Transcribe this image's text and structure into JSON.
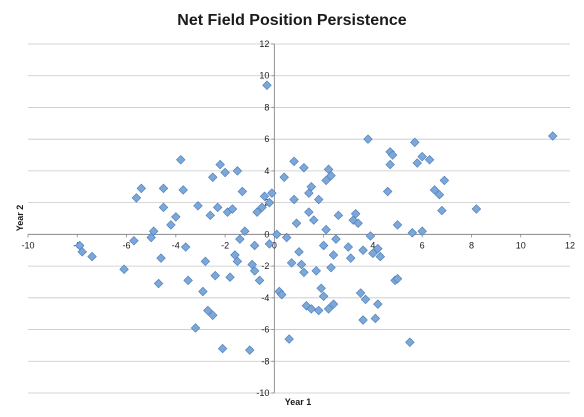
{
  "chart_data": {
    "type": "scatter",
    "title": "Net Field Position Persistence",
    "xlabel": "Year 1",
    "ylabel": "Year 2",
    "xlim": [
      -10,
      12
    ],
    "ylim": [
      -10,
      12
    ],
    "xticks": [
      -10,
      -8,
      -6,
      -4,
      -2,
      0,
      2,
      4,
      6,
      8,
      10,
      12
    ],
    "yticks": [
      -10,
      -8,
      -6,
      -4,
      -2,
      0,
      2,
      4,
      6,
      8,
      10,
      12
    ],
    "x_tick_labels": [
      "-10",
      "-8",
      "-6",
      "-4",
      "-2",
      "0",
      "2",
      "4",
      "6",
      "8",
      "10",
      "12"
    ],
    "y_tick_labels": [
      "-10",
      "-8",
      "-6",
      "-4",
      "-2",
      "0",
      "2",
      "4",
      "6",
      "8",
      "10",
      "12"
    ],
    "grid": "horizontal",
    "marker": "diamond",
    "marker_color": "#7ba7d9",
    "marker_stroke": "#4a7ab8",
    "points": [
      {
        "x": -7.9,
        "y": -0.7
      },
      {
        "x": -7.8,
        "y": -1.1
      },
      {
        "x": -7.4,
        "y": -1.4
      },
      {
        "x": -6.1,
        "y": -2.2
      },
      {
        "x": -5.7,
        "y": -0.4
      },
      {
        "x": -5.6,
        "y": 2.3
      },
      {
        "x": -5.4,
        "y": 2.9
      },
      {
        "x": -5.0,
        "y": -0.2
      },
      {
        "x": -4.9,
        "y": 0.2
      },
      {
        "x": -4.7,
        "y": -3.1
      },
      {
        "x": -4.6,
        "y": -1.5
      },
      {
        "x": -4.5,
        "y": 1.7
      },
      {
        "x": -4.5,
        "y": 2.9
      },
      {
        "x": -4.2,
        "y": 0.6
      },
      {
        "x": -4.0,
        "y": 1.1
      },
      {
        "x": -3.8,
        "y": 4.7
      },
      {
        "x": -3.7,
        "y": 2.8
      },
      {
        "x": -3.6,
        "y": -0.8
      },
      {
        "x": -3.5,
        "y": -2.9
      },
      {
        "x": -3.2,
        "y": -5.9
      },
      {
        "x": -3.1,
        "y": 1.8
      },
      {
        "x": -2.9,
        "y": -3.6
      },
      {
        "x": -2.8,
        "y": -1.7
      },
      {
        "x": -2.7,
        "y": -4.8
      },
      {
        "x": -2.6,
        "y": 1.2
      },
      {
        "x": -2.5,
        "y": -5.1
      },
      {
        "x": -2.5,
        "y": 3.6
      },
      {
        "x": -2.4,
        "y": -2.6
      },
      {
        "x": -2.3,
        "y": 1.7
      },
      {
        "x": -2.2,
        "y": 4.4
      },
      {
        "x": -2.1,
        "y": -7.2
      },
      {
        "x": -2.0,
        "y": 3.9
      },
      {
        "x": -1.9,
        "y": 1.4
      },
      {
        "x": -1.8,
        "y": -2.7
      },
      {
        "x": -1.7,
        "y": 1.6
      },
      {
        "x": -1.6,
        "y": -1.3
      },
      {
        "x": -1.5,
        "y": 4.0
      },
      {
        "x": -1.5,
        "y": -1.7
      },
      {
        "x": -1.4,
        "y": -0.3
      },
      {
        "x": -1.3,
        "y": 2.7
      },
      {
        "x": -1.2,
        "y": 0.2
      },
      {
        "x": -1.0,
        "y": -7.3
      },
      {
        "x": -0.9,
        "y": -1.9
      },
      {
        "x": -0.8,
        "y": -0.7
      },
      {
        "x": -0.8,
        "y": -2.3
      },
      {
        "x": -0.7,
        "y": 1.4
      },
      {
        "x": -0.6,
        "y": -2.9
      },
      {
        "x": -0.5,
        "y": 1.7
      },
      {
        "x": -0.4,
        "y": 2.4
      },
      {
        "x": -0.3,
        "y": 9.4
      },
      {
        "x": -0.2,
        "y": 2.0
      },
      {
        "x": -0.2,
        "y": -0.6
      },
      {
        "x": -0.1,
        "y": 2.6
      },
      {
        "x": 0.1,
        "y": 0.0
      },
      {
        "x": 0.2,
        "y": -3.6
      },
      {
        "x": 0.3,
        "y": -3.8
      },
      {
        "x": 0.4,
        "y": 3.6
      },
      {
        "x": 0.5,
        "y": -0.2
      },
      {
        "x": 0.6,
        "y": -6.6
      },
      {
        "x": 0.7,
        "y": -1.8
      },
      {
        "x": 0.8,
        "y": 2.2
      },
      {
        "x": 0.8,
        "y": 4.6
      },
      {
        "x": 0.9,
        "y": 0.7
      },
      {
        "x": 1.0,
        "y": -1.1
      },
      {
        "x": 1.1,
        "y": -1.9
      },
      {
        "x": 1.2,
        "y": 4.2
      },
      {
        "x": 1.2,
        "y": -2.4
      },
      {
        "x": 1.3,
        "y": -4.5
      },
      {
        "x": 1.4,
        "y": 1.4
      },
      {
        "x": 1.4,
        "y": 2.6
      },
      {
        "x": 1.5,
        "y": -4.7
      },
      {
        "x": 1.5,
        "y": 3.0
      },
      {
        "x": 1.6,
        "y": 0.9
      },
      {
        "x": 1.7,
        "y": -2.3
      },
      {
        "x": 1.8,
        "y": 2.2
      },
      {
        "x": 1.8,
        "y": -4.8
      },
      {
        "x": 1.9,
        "y": -3.4
      },
      {
        "x": 2.0,
        "y": -3.9
      },
      {
        "x": 2.0,
        "y": -0.7
      },
      {
        "x": 2.1,
        "y": 0.3
      },
      {
        "x": 2.1,
        "y": 3.4
      },
      {
        "x": 2.2,
        "y": -4.7
      },
      {
        "x": 2.2,
        "y": 4.1
      },
      {
        "x": 2.3,
        "y": -2.1
      },
      {
        "x": 2.3,
        "y": 3.7
      },
      {
        "x": 2.4,
        "y": -1.3
      },
      {
        "x": 2.4,
        "y": -4.4
      },
      {
        "x": 2.5,
        "y": -0.3
      },
      {
        "x": 2.6,
        "y": 1.2
      },
      {
        "x": 3.0,
        "y": -0.8
      },
      {
        "x": 3.1,
        "y": -1.5
      },
      {
        "x": 3.2,
        "y": 0.9
      },
      {
        "x": 3.3,
        "y": 1.3
      },
      {
        "x": 3.4,
        "y": 0.7
      },
      {
        "x": 3.5,
        "y": -3.7
      },
      {
        "x": 3.6,
        "y": -5.4
      },
      {
        "x": 3.6,
        "y": -1.0
      },
      {
        "x": 3.7,
        "y": -4.1
      },
      {
        "x": 3.8,
        "y": 6.0
      },
      {
        "x": 3.9,
        "y": -0.1
      },
      {
        "x": 4.0,
        "y": -1.2
      },
      {
        "x": 4.1,
        "y": -5.3
      },
      {
        "x": 4.2,
        "y": -4.4
      },
      {
        "x": 4.2,
        "y": -0.9
      },
      {
        "x": 4.3,
        "y": -1.4
      },
      {
        "x": 4.6,
        "y": 2.7
      },
      {
        "x": 4.7,
        "y": 5.2
      },
      {
        "x": 4.7,
        "y": 4.4
      },
      {
        "x": 4.8,
        "y": 5.0
      },
      {
        "x": 4.9,
        "y": -2.9
      },
      {
        "x": 5.0,
        "y": -2.8
      },
      {
        "x": 5.0,
        "y": 0.6
      },
      {
        "x": 5.5,
        "y": -6.8
      },
      {
        "x": 5.6,
        "y": 0.1
      },
      {
        "x": 5.7,
        "y": 5.8
      },
      {
        "x": 5.8,
        "y": 4.5
      },
      {
        "x": 6.0,
        "y": 0.2
      },
      {
        "x": 6.0,
        "y": 4.9
      },
      {
        "x": 6.3,
        "y": 4.7
      },
      {
        "x": 6.5,
        "y": 2.8
      },
      {
        "x": 6.7,
        "y": 2.5
      },
      {
        "x": 6.8,
        "y": 1.5
      },
      {
        "x": 6.9,
        "y": 3.4
      },
      {
        "x": 8.2,
        "y": 1.6
      },
      {
        "x": 11.3,
        "y": 6.2
      }
    ]
  }
}
